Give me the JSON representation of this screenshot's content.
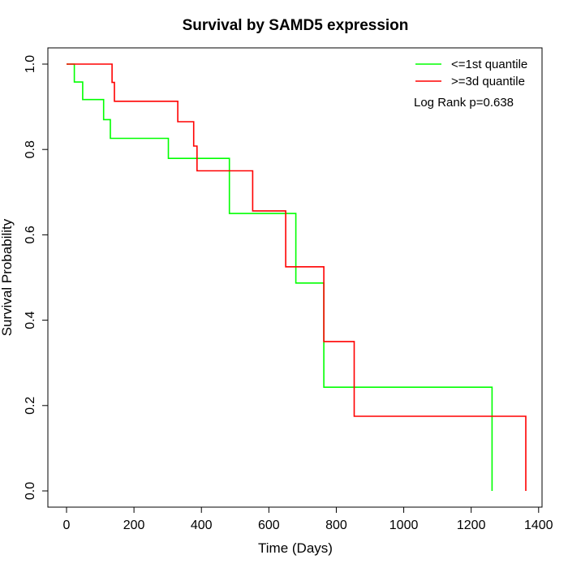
{
  "chart_data": {
    "type": "line",
    "title": "Survival by SAMD5 expression",
    "xlabel": "Time (Days)",
    "ylabel": "Survival Probability",
    "xlim": [
      0,
      1400
    ],
    "ylim": [
      0,
      1
    ],
    "xticks": [
      "0",
      "200",
      "400",
      "600",
      "800",
      "1000",
      "1200",
      "1400"
    ],
    "yticks": [
      "0.0",
      "0.2",
      "0.4",
      "0.6",
      "0.8",
      "1.0"
    ],
    "legend_position": "top-right",
    "annotation": "Log Rank p=0.638",
    "series": [
      {
        "name": "<=1st quantile",
        "color": "#00ff00",
        "step_x": [
          0,
          23,
          23,
          48,
          48,
          110,
          110,
          130,
          130,
          302,
          302,
          483,
          483,
          680,
          680,
          763,
          763,
          1262,
          1262
        ],
        "step_y": [
          1,
          1,
          0.958,
          0.958,
          0.917,
          0.917,
          0.87,
          0.87,
          0.826,
          0.826,
          0.779,
          0.779,
          0.65,
          0.65,
          0.487,
          0.487,
          0.243,
          0.243,
          0
        ]
      },
      {
        "name": ">=3d quantile",
        "color": "#ff0000",
        "step_x": [
          0,
          135,
          135,
          142,
          142,
          330,
          330,
          377,
          377,
          387,
          387,
          552,
          552,
          650,
          650,
          763,
          763,
          853,
          853,
          1362,
          1362
        ],
        "step_y": [
          1,
          1,
          0.957,
          0.957,
          0.913,
          0.913,
          0.865,
          0.865,
          0.808,
          0.808,
          0.75,
          0.75,
          0.656,
          0.656,
          0.525,
          0.525,
          0.35,
          0.35,
          0.175,
          0.175,
          0
        ]
      }
    ]
  }
}
